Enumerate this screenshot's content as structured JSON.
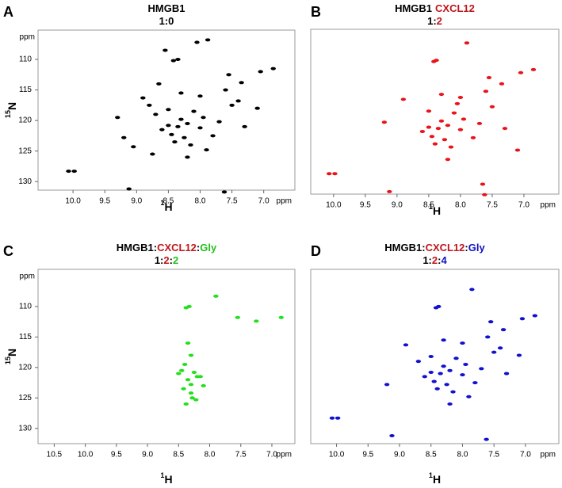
{
  "chart_data": [
    {
      "type": "scatter",
      "panel": "A",
      "color": "#000000",
      "title": [
        [
          {
            "text": "HMGB1",
            "color": "#000000"
          }
        ],
        [
          {
            "text": "1:0",
            "color": "#000000"
          }
        ]
      ],
      "x_label": {
        "sup": "1",
        "text": "H"
      },
      "y_label": {
        "sup": "15",
        "text": "N"
      },
      "x_unit": "ppm",
      "y_unit": "ppm",
      "xlim": [
        10.55,
        6.51
      ],
      "ylim": [
        131.4,
        105.2
      ],
      "xticks": [
        {
          "value": 10,
          "label": "10.0"
        },
        9.5,
        {
          "value": 9,
          "label": "9.0"
        },
        8.5,
        {
          "value": 8,
          "label": "8.0"
        },
        7.5,
        {
          "value": 7,
          "label": "7.0"
        }
      ],
      "yticks": [
        110,
        115,
        120,
        125,
        130
      ],
      "x": [
        10.07,
        9.98,
        9.12,
        7.62,
        8.55,
        8.42,
        8.35,
        8.05,
        7.88,
        7.55,
        7.05,
        6.85,
        7.35,
        8.9,
        9.2,
        9.05,
        8.7,
        8.6,
        8.5,
        8.45,
        8.4,
        8.35,
        8.3,
        8.25,
        8.2,
        8.15,
        8.1,
        8.0,
        7.95,
        7.8,
        7.7,
        7.5,
        7.3,
        7.1,
        8.75,
        8.65,
        8.3,
        8.2,
        7.6,
        7.4,
        9.3,
        8.8,
        8.5,
        8.0,
        7.9
      ],
      "y": [
        128.3,
        128.3,
        131.2,
        131.7,
        108.5,
        110.2,
        110.0,
        107.2,
        106.8,
        112.5,
        112.0,
        111.5,
        113.8,
        116.3,
        122.8,
        124.3,
        119.0,
        121.5,
        120.8,
        122.3,
        123.5,
        121.0,
        119.8,
        122.8,
        120.5,
        124.0,
        118.5,
        121.2,
        119.5,
        122.5,
        120.2,
        117.5,
        121.0,
        118.0,
        125.5,
        114.0,
        115.5,
        126.0,
        115.0,
        116.8,
        119.5,
        117.5,
        118.2,
        116.0,
        124.8
      ]
    },
    {
      "type": "scatter",
      "panel": "B",
      "color": "#e8141a",
      "title": [
        [
          {
            "text": "HMGB1",
            "color": "#000000"
          },
          {
            "text": "CXCL12",
            "color": "#c0141a"
          }
        ],
        [
          {
            "text": "1:",
            "color": "#000000"
          },
          {
            "text": "2",
            "color": "#c0141a"
          }
        ]
      ],
      "x_label": {
        "sup": "1",
        "text": "H"
      },
      "x_unit": "ppm",
      "xlim": [
        10.36,
        6.45
      ],
      "ylim": [
        131.6,
        105.0
      ],
      "xticks": [
        {
          "value": 10,
          "label": "10.0"
        },
        9.5,
        {
          "value": 9,
          "label": "9.0"
        },
        8.5,
        {
          "value": 8,
          "label": "8.0"
        },
        7.5,
        {
          "value": 7,
          "label": "7.0"
        }
      ],
      "x": [
        10.07,
        9.98,
        9.12,
        7.62,
        8.42,
        8.38,
        7.9,
        7.55,
        7.05,
        6.85,
        7.35,
        8.9,
        8.6,
        8.5,
        8.45,
        8.4,
        8.35,
        8.3,
        8.25,
        8.2,
        8.15,
        8.1,
        8.0,
        7.95,
        7.8,
        7.7,
        7.5,
        7.3,
        7.1,
        8.3,
        8.2,
        7.6,
        8.05,
        8.5,
        8.0,
        7.65,
        9.2
      ],
      "y": [
        128.3,
        128.3,
        131.2,
        131.7,
        110.2,
        110.0,
        107.2,
        112.8,
        112.0,
        111.5,
        113.8,
        116.3,
        121.5,
        120.8,
        122.3,
        123.5,
        121.0,
        119.8,
        122.8,
        120.5,
        124.0,
        118.5,
        121.2,
        119.5,
        122.5,
        120.2,
        117.5,
        121.0,
        124.5,
        115.5,
        126.0,
        115.0,
        117.0,
        118.2,
        116.0,
        130.0,
        120.0
      ]
    },
    {
      "type": "scatter",
      "panel": "C",
      "color": "#22e01c",
      "title": [
        [
          {
            "text": "HMGB1",
            "color": "#000000"
          },
          {
            "text": ":",
            "color": "#000000"
          },
          {
            "text": "CXCL12",
            "color": "#c0141a"
          },
          {
            "text": ":",
            "color": "#000000"
          },
          {
            "text": "Gly",
            "color": "#22c01c"
          }
        ],
        [
          {
            "text": "1:",
            "color": "#000000"
          },
          {
            "text": "2",
            "color": "#c0141a"
          },
          {
            "text": ":",
            "color": "#000000"
          },
          {
            "text": "2",
            "color": "#22c01c"
          }
        ]
      ],
      "x_label": {
        "sup": "1",
        "text": "H"
      },
      "y_label": {
        "sup": "15",
        "text": "N"
      },
      "x_unit": "ppm",
      "y_unit": "ppm",
      "xlim": [
        10.76,
        6.63
      ],
      "ylim": [
        132.5,
        103.9
      ],
      "xticks": [
        10.5,
        {
          "value": 10,
          "label": "10.0"
        },
        9.5,
        {
          "value": 9,
          "label": "9.0"
        },
        8.5,
        {
          "value": 8,
          "label": "8.0"
        },
        7.5,
        {
          "value": 7,
          "label": "7.0"
        }
      ],
      "yticks": [
        110,
        115,
        120,
        125,
        130
      ],
      "x": [
        8.38,
        8.33,
        7.9,
        7.55,
        7.25,
        6.85,
        8.35,
        8.3,
        8.4,
        8.45,
        8.25,
        8.2,
        8.35,
        8.3,
        8.42,
        8.15,
        8.3,
        8.28,
        8.38,
        8.22,
        8.5,
        8.1
      ],
      "y": [
        110.2,
        110.0,
        108.3,
        111.8,
        112.4,
        111.8,
        116.0,
        118.0,
        119.5,
        120.5,
        120.8,
        121.5,
        122.0,
        122.8,
        123.5,
        121.5,
        124.2,
        125.0,
        126.0,
        125.3,
        121.0,
        123.0
      ]
    },
    {
      "type": "scatter",
      "panel": "D",
      "color": "#1010d0",
      "title": [
        [
          {
            "text": "HMGB1",
            "color": "#000000"
          },
          {
            "text": ":",
            "color": "#000000"
          },
          {
            "text": "CXCL12",
            "color": "#c0141a"
          },
          {
            "text": ":",
            "color": "#000000"
          },
          {
            "text": "Gly",
            "color": "#1010c0"
          }
        ],
        [
          {
            "text": "1:",
            "color": "#000000"
          },
          {
            "text": "2",
            "color": "#c0141a"
          },
          {
            "text": ":",
            "color": "#000000"
          },
          {
            "text": "4",
            "color": "#1010c0"
          }
        ]
      ],
      "x_label": {
        "sup": "1",
        "text": "H"
      },
      "x_unit": "ppm",
      "xlim": [
        10.41,
        6.47
      ],
      "ylim": [
        132.5,
        103.9
      ],
      "xticks": [
        {
          "value": 10,
          "label": "10.0"
        },
        9.5,
        {
          "value": 9,
          "label": "9.0"
        },
        8.5,
        {
          "value": 8,
          "label": "8.0"
        },
        7.5,
        {
          "value": 7,
          "label": "7.0"
        }
      ],
      "x": [
        10.07,
        9.98,
        9.12,
        7.62,
        8.42,
        8.38,
        7.85,
        7.55,
        7.05,
        6.85,
        7.35,
        8.9,
        9.2,
        8.7,
        8.6,
        8.5,
        8.45,
        8.4,
        8.35,
        8.3,
        8.25,
        8.2,
        8.15,
        8.1,
        8.0,
        7.95,
        7.8,
        7.7,
        7.5,
        7.3,
        7.1,
        8.3,
        8.2,
        7.6,
        7.4,
        8.5,
        8.0,
        7.9
      ],
      "y": [
        128.3,
        128.3,
        131.2,
        131.8,
        110.2,
        110.0,
        107.2,
        112.5,
        112.0,
        111.5,
        113.8,
        116.3,
        122.8,
        119.0,
        121.5,
        120.8,
        122.3,
        123.5,
        121.0,
        119.8,
        122.8,
        120.5,
        124.0,
        118.5,
        121.2,
        119.5,
        122.5,
        120.2,
        117.5,
        121.0,
        118.0,
        115.5,
        126.0,
        115.0,
        116.8,
        118.2,
        116.0,
        124.8
      ]
    }
  ]
}
